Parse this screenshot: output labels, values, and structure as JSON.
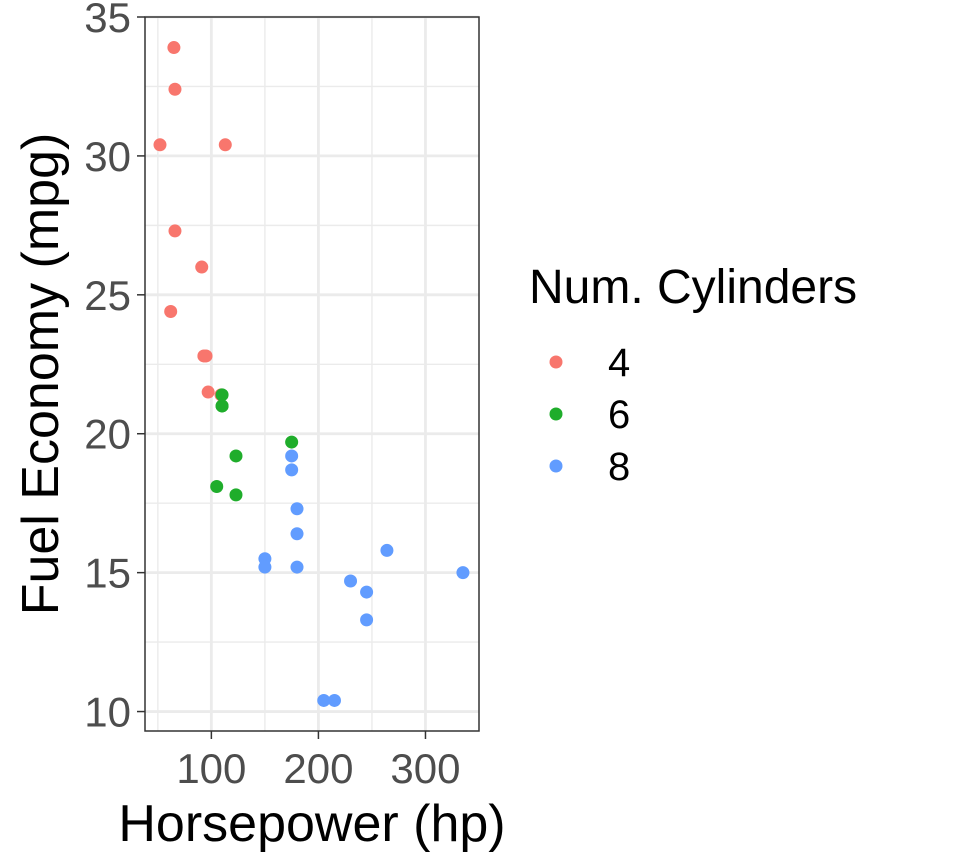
{
  "chart_data": {
    "type": "scatter",
    "xlabel": "Horsepower (hp)",
    "ylabel": "Fuel Economy (mpg)",
    "xlim": [
      38,
      350
    ],
    "ylim": [
      9.3,
      35
    ],
    "x_ticks": [
      100,
      200,
      300
    ],
    "y_ticks": [
      10,
      15,
      20,
      25,
      30,
      35
    ],
    "grid": true,
    "legend": {
      "title": "Num. Cylinders",
      "position": "right",
      "entries": [
        "4",
        "6",
        "8"
      ]
    },
    "colors": {
      "4": "#f8766d",
      "6": "#1fad2b",
      "8": "#619cff"
    },
    "series": [
      {
        "name": "4",
        "points": [
          {
            "x": 65,
            "y": 33.9
          },
          {
            "x": 66,
            "y": 32.4
          },
          {
            "x": 52,
            "y": 30.4
          },
          {
            "x": 113,
            "y": 30.4
          },
          {
            "x": 66,
            "y": 27.3
          },
          {
            "x": 91,
            "y": 26.0
          },
          {
            "x": 62,
            "y": 24.4
          },
          {
            "x": 93,
            "y": 22.8
          },
          {
            "x": 95,
            "y": 22.8
          },
          {
            "x": 97,
            "y": 21.5
          },
          {
            "x": 109,
            "y": 21.4
          }
        ]
      },
      {
        "name": "6",
        "points": [
          {
            "x": 110,
            "y": 21.0
          },
          {
            "x": 110,
            "y": 21.0
          },
          {
            "x": 110,
            "y": 21.4
          },
          {
            "x": 175,
            "y": 19.7
          },
          {
            "x": 123,
            "y": 19.2
          },
          {
            "x": 105,
            "y": 18.1
          },
          {
            "x": 123,
            "y": 17.8
          }
        ]
      },
      {
        "name": "8",
        "points": [
          {
            "x": 175,
            "y": 19.2
          },
          {
            "x": 175,
            "y": 18.7
          },
          {
            "x": 180,
            "y": 17.3
          },
          {
            "x": 180,
            "y": 16.4
          },
          {
            "x": 264,
            "y": 15.8
          },
          {
            "x": 150,
            "y": 15.5
          },
          {
            "x": 150,
            "y": 15.2
          },
          {
            "x": 180,
            "y": 15.2
          },
          {
            "x": 335,
            "y": 15.0
          },
          {
            "x": 230,
            "y": 14.7
          },
          {
            "x": 245,
            "y": 14.3
          },
          {
            "x": 245,
            "y": 13.3
          },
          {
            "x": 205,
            "y": 10.4
          },
          {
            "x": 215,
            "y": 10.4
          }
        ]
      }
    ]
  }
}
